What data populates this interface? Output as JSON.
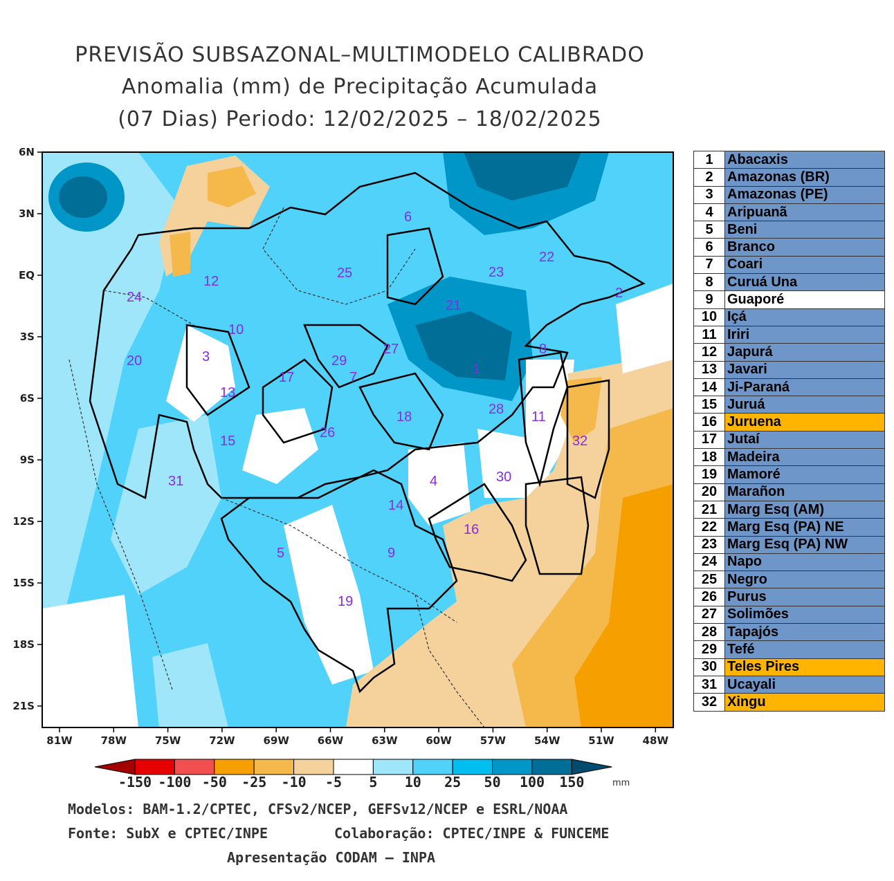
{
  "title": {
    "line1": "PREVISÃO SUBSAZONAL–MULTIMODELO CALIBRADO",
    "line2": "Anomalia (mm) de Precipitação Acumulada",
    "line3": "(07 Dias) Periodo: 12/02/2025 – 18/02/2025"
  },
  "axes": {
    "lat_labels": [
      "6N",
      "3N",
      "EQ",
      "3S",
      "6S",
      "9S",
      "12S",
      "15S",
      "18S",
      "21S"
    ],
    "lon_labels": [
      "81W",
      "78W",
      "75W",
      "72W",
      "69W",
      "66W",
      "63W",
      "60W",
      "57W",
      "54W",
      "51W",
      "48W"
    ]
  },
  "colorbar": {
    "tick_labels": [
      "-150",
      "-100",
      "-50",
      "-25",
      "-10",
      "-5",
      "5",
      "10",
      "25",
      "50",
      "100",
      "150"
    ],
    "unit": "mm",
    "colors": [
      "#a50000",
      "#e60000",
      "#f25050",
      "#f5a000",
      "#f5b94b",
      "#f5d29b",
      "#ffffff",
      "#a0e6fa",
      "#50d2fa",
      "#00bef0",
      "#0096c8",
      "#006e96",
      "#004b6e"
    ]
  },
  "basins": [
    {
      "num": "1",
      "name": "Abacaxis",
      "status": "blue"
    },
    {
      "num": "2",
      "name": "Amazonas (BR)",
      "status": "blue"
    },
    {
      "num": "3",
      "name": "Amazonas (PE)",
      "status": "blue"
    },
    {
      "num": "4",
      "name": "Aripuanã",
      "status": "blue"
    },
    {
      "num": "5",
      "name": "Beni",
      "status": "blue"
    },
    {
      "num": "6",
      "name": "Branco",
      "status": "blue"
    },
    {
      "num": "7",
      "name": "Coari",
      "status": "blue"
    },
    {
      "num": "8",
      "name": "Curuá Una",
      "status": "blue"
    },
    {
      "num": "9",
      "name": "Guaporé",
      "status": "white"
    },
    {
      "num": "10",
      "name": "Içá",
      "status": "blue"
    },
    {
      "num": "11",
      "name": "Iriri",
      "status": "blue"
    },
    {
      "num": "12",
      "name": "Japurá",
      "status": "blue"
    },
    {
      "num": "13",
      "name": "Javari",
      "status": "blue"
    },
    {
      "num": "14",
      "name": "Ji-Paraná",
      "status": "blue"
    },
    {
      "num": "15",
      "name": "Juruá",
      "status": "blue"
    },
    {
      "num": "16",
      "name": "Juruena",
      "status": "orange"
    },
    {
      "num": "17",
      "name": "Jutaí",
      "status": "blue"
    },
    {
      "num": "18",
      "name": "Madeira",
      "status": "blue"
    },
    {
      "num": "19",
      "name": "Mamoré",
      "status": "blue"
    },
    {
      "num": "20",
      "name": "Marañon",
      "status": "blue"
    },
    {
      "num": "21",
      "name": "Marg Esq (AM)",
      "status": "blue"
    },
    {
      "num": "22",
      "name": "Marg Esq (PA) NE",
      "status": "blue"
    },
    {
      "num": "23",
      "name": "Marg Esq (PA) NW",
      "status": "blue"
    },
    {
      "num": "24",
      "name": "Napo",
      "status": "blue"
    },
    {
      "num": "25",
      "name": "Negro",
      "status": "blue"
    },
    {
      "num": "26",
      "name": "Purus",
      "status": "blue"
    },
    {
      "num": "27",
      "name": "Solimões",
      "status": "blue"
    },
    {
      "num": "28",
      "name": "Tapajós",
      "status": "blue"
    },
    {
      "num": "29",
      "name": "Tefé",
      "status": "blue"
    },
    {
      "num": "30",
      "name": "Teles Pires",
      "status": "orange"
    },
    {
      "num": "31",
      "name": "Ucayali",
      "status": "blue"
    },
    {
      "num": "32",
      "name": "Xingu",
      "status": "orange"
    }
  ],
  "status_colors": {
    "blue": "#6f96c8",
    "white": "#ffffff",
    "orange": "#ffb400"
  },
  "footer": {
    "models": "Modelos: BAM-1.2/CPTEC, CFSv2/NCEP, GEFSv12/NCEP e ESRL/NOAA",
    "source": "Fonte: SubX e CPTEC/INPE",
    "collab": "Colaboração: CPTEC/INPE & FUNCEME",
    "presentation": "Apresentação CODAM – INPA"
  }
}
